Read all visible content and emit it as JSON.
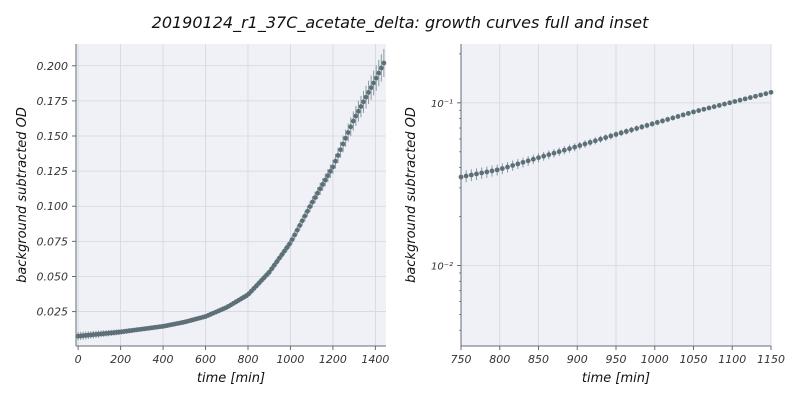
{
  "title": "20190124_r1_37C_acetate_delta: growth curves full and inset",
  "colors": {
    "background": "#ffffff",
    "panel": "#eff1f6",
    "grid": "#d4d7de",
    "marker": "#5d7078",
    "errorbar": "#8a9aa0",
    "spine": "#666c75"
  },
  "chart_data": [
    {
      "type": "scatter",
      "name": "full",
      "xlabel": "time [min]",
      "ylabel": "background subtracted OD",
      "xlim": [
        -10,
        1450
      ],
      "ylim": [
        0.0005,
        0.2155
      ],
      "yscale": "linear",
      "grid": true,
      "xticks": [
        0,
        200,
        400,
        600,
        800,
        1000,
        1200,
        1400
      ],
      "xtick_labels": [
        "0",
        "200",
        "400",
        "600",
        "800",
        "1000",
        "1200",
        "1400"
      ],
      "yticks": [
        0.025,
        0.05,
        0.075,
        0.1,
        0.125,
        0.15,
        0.175,
        0.2
      ],
      "ytick_labels": [
        "0.025",
        "0.050",
        "0.075",
        "0.100",
        "0.125",
        "0.150",
        "0.175",
        "0.200"
      ],
      "error_bars": true,
      "series": [
        {
          "x": [
            0,
            100,
            200,
            300,
            400,
            500,
            600,
            700,
            800,
            900,
            1000,
            1100,
            1200,
            1300,
            1400,
            1440
          ],
          "y": [
            0.0075,
            0.009,
            0.0105,
            0.0125,
            0.0145,
            0.0175,
            0.0215,
            0.028,
            0.037,
            0.053,
            0.074,
            0.102,
            0.128,
            0.162,
            0.19,
            0.202
          ],
          "yerr": [
            0.003,
            0.0025,
            0.002,
            0.0015,
            0.0015,
            0.0015,
            0.0015,
            0.0015,
            0.002,
            0.0025,
            0.003,
            0.004,
            0.005,
            0.007,
            0.009,
            0.01
          ]
        }
      ]
    },
    {
      "type": "scatter",
      "name": "inset",
      "xlabel": "time [min]",
      "ylabel": "background subtracted OD",
      "xlim": [
        750,
        1150
      ],
      "ylim": [
        0.0032,
        0.23
      ],
      "yscale": "log",
      "grid": true,
      "xticks": [
        750,
        800,
        850,
        900,
        950,
        1000,
        1050,
        1100,
        1150
      ],
      "xtick_labels": [
        "750",
        "800",
        "850",
        "900",
        "950",
        "1000",
        "1050",
        "1100",
        "1150"
      ],
      "yticks": [
        0.01,
        0.1
      ],
      "ytick_labels": [
        "10⁻²",
        "10⁻¹"
      ],
      "error_bars": true,
      "series": [
        {
          "x": [
            750,
            800,
            850,
            900,
            950,
            1000,
            1050,
            1100,
            1150
          ],
          "y": [
            0.035,
            0.039,
            0.046,
            0.054,
            0.064,
            0.075,
            0.088,
            0.101,
            0.116
          ],
          "yerr": [
            0.003,
            0.003,
            0.003,
            0.003,
            0.003,
            0.003,
            0.003,
            0.003,
            0.003
          ]
        }
      ]
    }
  ]
}
